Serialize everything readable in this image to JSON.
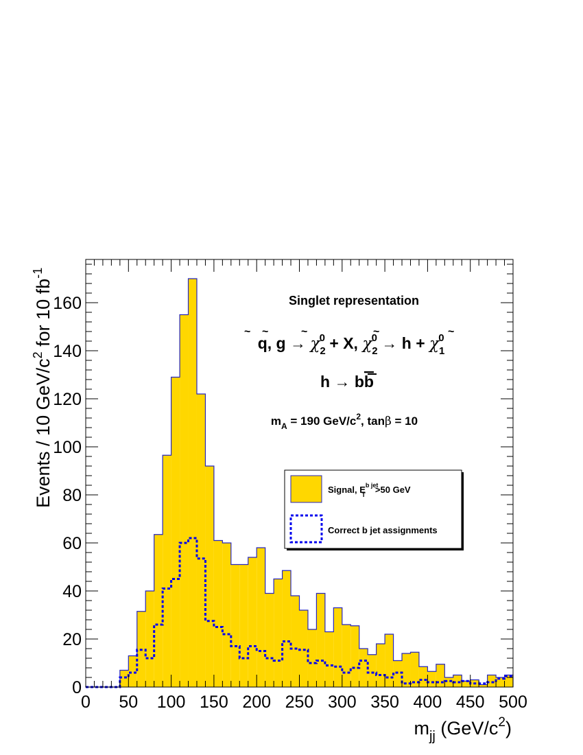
{
  "chart_data": {
    "type": "histogram",
    "bin_width": 10,
    "xlim": [
      0,
      500
    ],
    "ylim": [
      0,
      178
    ],
    "x_ticks": [
      0,
      50,
      100,
      150,
      200,
      250,
      300,
      350,
      400,
      450,
      500
    ],
    "y_ticks": [
      0,
      20,
      40,
      60,
      80,
      100,
      120,
      140,
      160
    ],
    "xlabel": "m",
    "xlabel_sub": "jj",
    "xlabel_unit": "(GeV/c",
    "xlabel_unit_sup": "2",
    "xlabel_close": ")",
    "ylabel": "Events / 10 GeV/c",
    "ylabel_sup": "2",
    "ylabel_rest": " for 10 fb",
    "ylabel_sup2": "-1",
    "series": [
      {
        "name": "Signal, E",
        "name_sup": "b jet",
        "name_sub": "T",
        "name_rest": ">50 GeV",
        "style": "filled",
        "color": "#FFD700",
        "edge": "#2626bf",
        "x": [
          0,
          10,
          20,
          30,
          40,
          50,
          60,
          70,
          80,
          90,
          100,
          110,
          120,
          130,
          140,
          150,
          160,
          170,
          180,
          190,
          200,
          210,
          220,
          230,
          240,
          250,
          260,
          270,
          280,
          290,
          300,
          310,
          320,
          330,
          340,
          350,
          360,
          370,
          380,
          390,
          400,
          410,
          420,
          430,
          440,
          450,
          460,
          470,
          480,
          490
        ],
        "values": [
          0,
          0,
          0,
          0,
          7,
          13,
          31.5,
          40,
          63.5,
          96.5,
          129,
          155,
          170,
          122,
          92,
          61,
          60,
          51,
          51,
          54,
          58,
          39,
          45,
          48.5,
          38,
          32,
          24,
          39,
          23,
          33,
          26,
          25.5,
          16,
          13.5,
          18,
          22,
          11,
          14,
          14.5,
          8.5,
          6.5,
          9.5,
          4,
          5,
          2.5,
          3,
          1,
          5,
          4,
          5
        ]
      },
      {
        "name": "Correct b jet assignments",
        "style": "dashed",
        "color": "#0000ee",
        "x": [
          0,
          10,
          20,
          30,
          40,
          50,
          60,
          70,
          80,
          90,
          100,
          110,
          120,
          130,
          140,
          150,
          160,
          170,
          180,
          190,
          200,
          210,
          220,
          230,
          240,
          250,
          260,
          270,
          280,
          290,
          300,
          310,
          320,
          330,
          340,
          350,
          360,
          370,
          380,
          390,
          400,
          410,
          420,
          430,
          440,
          450,
          460,
          470,
          480,
          490
        ],
        "values": [
          0,
          0,
          0,
          0,
          4,
          6,
          15.5,
          12,
          26,
          41,
          45,
          60,
          62,
          53.5,
          27.5,
          25,
          22,
          17,
          12,
          17,
          15,
          12,
          11,
          19,
          16,
          15.5,
          10,
          11,
          9,
          8.5,
          6,
          8,
          11,
          6,
          5,
          4,
          6,
          1.5,
          2,
          3,
          2,
          2,
          2.5,
          2,
          2.5,
          1.5,
          1.5,
          2,
          3.5,
          4.5
        ]
      }
    ],
    "annotations": {
      "title": "Singlet representation",
      "process_line1_parts": [
        "q",
        ", ",
        "g",
        " → ",
        "χ",
        "2",
        "0",
        " + X,  ",
        "χ",
        "2",
        "0",
        " → h + ",
        "χ",
        "1",
        "0"
      ],
      "process_line2_parts": [
        "h → b",
        "b"
      ],
      "params_parts": [
        "m",
        "A",
        " = 190 GeV/c",
        "2",
        ", tan",
        "β",
        " = 10"
      ]
    },
    "legend_position": "middle-right",
    "grid": false
  }
}
